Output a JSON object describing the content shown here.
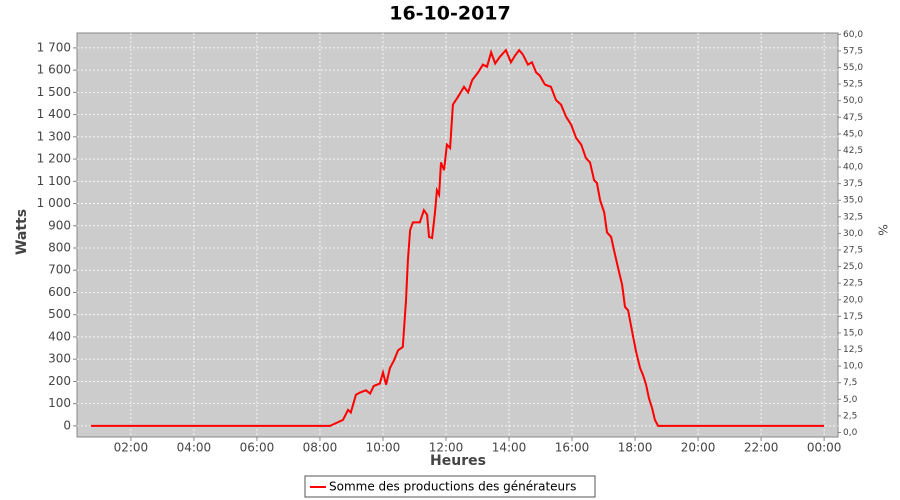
{
  "chart_data": {
    "type": "line",
    "title": "16-10-2017",
    "xlabel": "Heures",
    "ylabel": "Watts",
    "y2label": "%",
    "x": [
      0.73,
      8.32,
      8.73,
      8.89,
      8.98,
      9.14,
      9.27,
      9.46,
      9.59,
      9.71,
      9.9,
      10.0,
      10.1,
      10.22,
      10.35,
      10.48,
      10.63,
      10.73,
      10.79,
      10.86,
      10.95,
      11.17,
      11.3,
      11.4,
      11.46,
      11.56,
      11.65,
      11.71,
      11.78,
      11.84,
      11.94,
      12.03,
      12.13,
      12.22,
      12.38,
      12.57,
      12.7,
      12.83,
      13.02,
      13.17,
      13.3,
      13.43,
      13.56,
      13.71,
      13.9,
      14.06,
      14.19,
      14.32,
      14.44,
      14.6,
      14.73,
      14.86,
      14.98,
      15.14,
      15.33,
      15.49,
      15.65,
      15.81,
      15.97,
      16.13,
      16.29,
      16.44,
      16.57,
      16.7,
      16.79,
      16.89,
      17.02,
      17.11,
      17.24,
      17.33,
      17.46,
      17.59,
      17.68,
      17.78,
      17.9,
      18.03,
      18.16,
      18.25,
      18.35,
      18.44,
      18.54,
      18.63,
      18.73,
      24.0
    ],
    "series": [
      {
        "name": "Somme des productions des  générateurs",
        "color": "#ff0000",
        "values": [
          0,
          0,
          27,
          72,
          60,
          140,
          150,
          160,
          145,
          180,
          190,
          240,
          185,
          260,
          295,
          340,
          355,
          565,
          745,
          880,
          915,
          915,
          970,
          950,
          850,
          845,
          960,
          1060,
          1040,
          1185,
          1150,
          1265,
          1250,
          1445,
          1480,
          1525,
          1500,
          1555,
          1590,
          1625,
          1615,
          1680,
          1630,
          1660,
          1690,
          1635,
          1665,
          1690,
          1670,
          1625,
          1635,
          1590,
          1575,
          1535,
          1525,
          1465,
          1445,
          1390,
          1355,
          1295,
          1265,
          1205,
          1185,
          1105,
          1093,
          1015,
          960,
          870,
          850,
          790,
          710,
          635,
          535,
          520,
          430,
          335,
          260,
          230,
          185,
          125,
          80,
          27,
          0,
          0
        ]
      }
    ],
    "xlim": [
      0.29,
      24.44
    ],
    "ylim": [
      -50,
      1767
    ],
    "y2lim": [
      -0.68,
      60.2
    ],
    "xticks": [
      {
        "value": 2,
        "label": "02:00"
      },
      {
        "value": 4,
        "label": "04:00"
      },
      {
        "value": 6,
        "label": "06:00"
      },
      {
        "value": 8,
        "label": "08:00"
      },
      {
        "value": 10,
        "label": "10:00"
      },
      {
        "value": 12,
        "label": "12:00"
      },
      {
        "value": 14,
        "label": "14:00"
      },
      {
        "value": 16,
        "label": "16:00"
      },
      {
        "value": 18,
        "label": "18:00"
      },
      {
        "value": 20,
        "label": "20:00"
      },
      {
        "value": 22,
        "label": "22:00"
      },
      {
        "value": 24,
        "label": "00:00"
      }
    ],
    "yticks": [
      0,
      100,
      200,
      300,
      400,
      500,
      600,
      700,
      800,
      900,
      {
        "value": 1000,
        "label": "1 000"
      },
      {
        "value": 1100,
        "label": "1 100"
      },
      {
        "value": 1200,
        "label": "1 200"
      },
      {
        "value": 1300,
        "label": "1 300"
      },
      {
        "value": 1400,
        "label": "1 400"
      },
      {
        "value": 1500,
        "label": "1 500"
      },
      {
        "value": 1600,
        "label": "1 600"
      },
      {
        "value": 1700,
        "label": "1 700"
      }
    ],
    "y2ticks": [
      {
        "value": 0,
        "label": "0,0"
      },
      {
        "value": 2.5,
        "label": "2,5"
      },
      {
        "value": 5,
        "label": "5,0"
      },
      {
        "value": 7.5,
        "label": "7,5"
      },
      {
        "value": 10,
        "label": "10,0"
      },
      {
        "value": 12.5,
        "label": "12,5"
      },
      {
        "value": 15,
        "label": "15,0"
      },
      {
        "value": 17.5,
        "label": "17,5"
      },
      {
        "value": 20,
        "label": "20,0"
      },
      {
        "value": 22.5,
        "label": "22,5"
      },
      {
        "value": 25,
        "label": "25,0"
      },
      {
        "value": 27.5,
        "label": "27,5"
      },
      {
        "value": 30,
        "label": "30,0"
      },
      {
        "value": 32.5,
        "label": "32,5"
      },
      {
        "value": 35,
        "label": "35,0"
      },
      {
        "value": 37.5,
        "label": "37,5"
      },
      {
        "value": 40,
        "label": "40,0"
      },
      {
        "value": 42.5,
        "label": "42,5"
      },
      {
        "value": 45,
        "label": "45,0"
      },
      {
        "value": 47.5,
        "label": "47,5"
      },
      {
        "value": 50,
        "label": "50,0"
      },
      {
        "value": 52.5,
        "label": "52,5"
      },
      {
        "value": 55,
        "label": "55,0"
      },
      {
        "value": 57.5,
        "label": "57,5"
      },
      {
        "value": 60,
        "label": "60,0"
      }
    ],
    "grid": true
  }
}
